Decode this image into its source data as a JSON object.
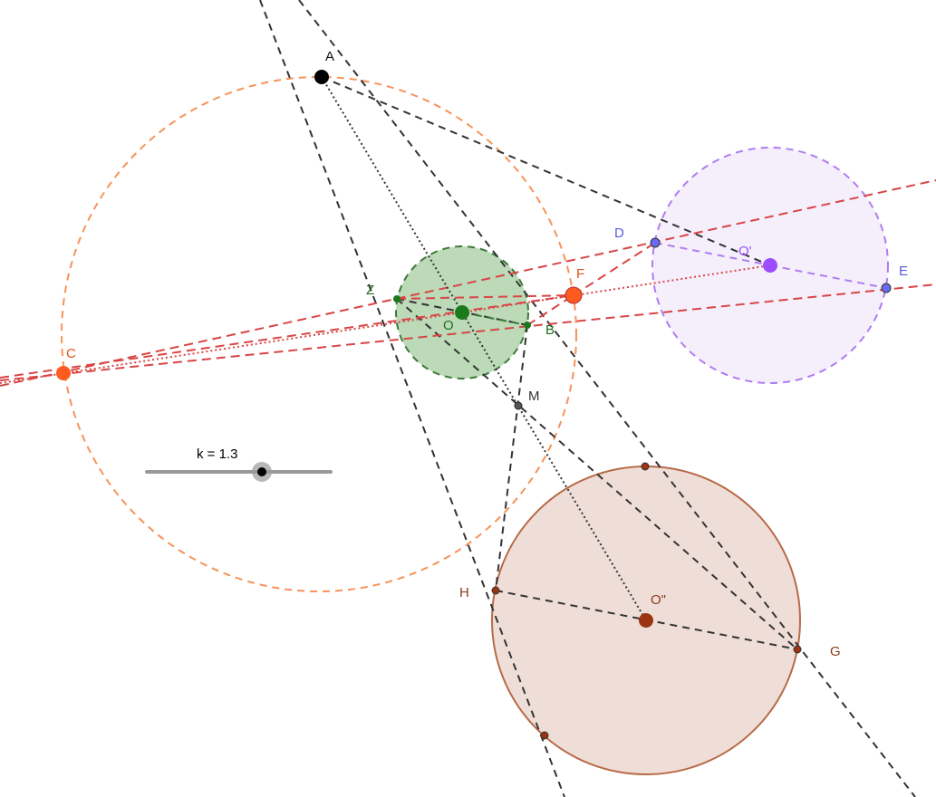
{
  "slider": {
    "label": "k = 1.3",
    "k": 1.3
  },
  "colors": {
    "black_line": "#333333",
    "red_line": "#d94545",
    "orange_circle": "#f7935a",
    "green_fill": "#bcd9b8",
    "green_stroke": "#3d7a38",
    "violet_fill": "#f5effc",
    "violet_stroke": "#b07cf0",
    "brown_fill": "#efded8",
    "brown_stroke": "#b86a47",
    "point_black": "#000000",
    "point_orange": "#ff5a1f",
    "point_green": "#1b7a1b",
    "point_violet": "#9b4dff",
    "point_blue": "#6a6af0",
    "point_brown": "#9a3412",
    "label_green": "#1f6f1f",
    "label_orange": "#e0541a",
    "label_blue": "#5a5ae6",
    "label_violet": "#9b4dff",
    "label_brown": "#8a3a1a",
    "label_black": "#111111",
    "label_gray": "#333333"
  },
  "points": {
    "A": {
      "label": "A"
    },
    "C": {
      "label": "C"
    },
    "F": {
      "label": "F"
    },
    "Z": {
      "label": "Z"
    },
    "O": {
      "label": "O"
    },
    "B": {
      "label": "B"
    },
    "D": {
      "label": "D"
    },
    "E": {
      "label": "E"
    },
    "O1": {
      "label": "O'"
    },
    "M": {
      "label": "M"
    },
    "H": {
      "label": "H"
    },
    "O2": {
      "label": "O\""
    },
    "G": {
      "label": "G"
    }
  }
}
